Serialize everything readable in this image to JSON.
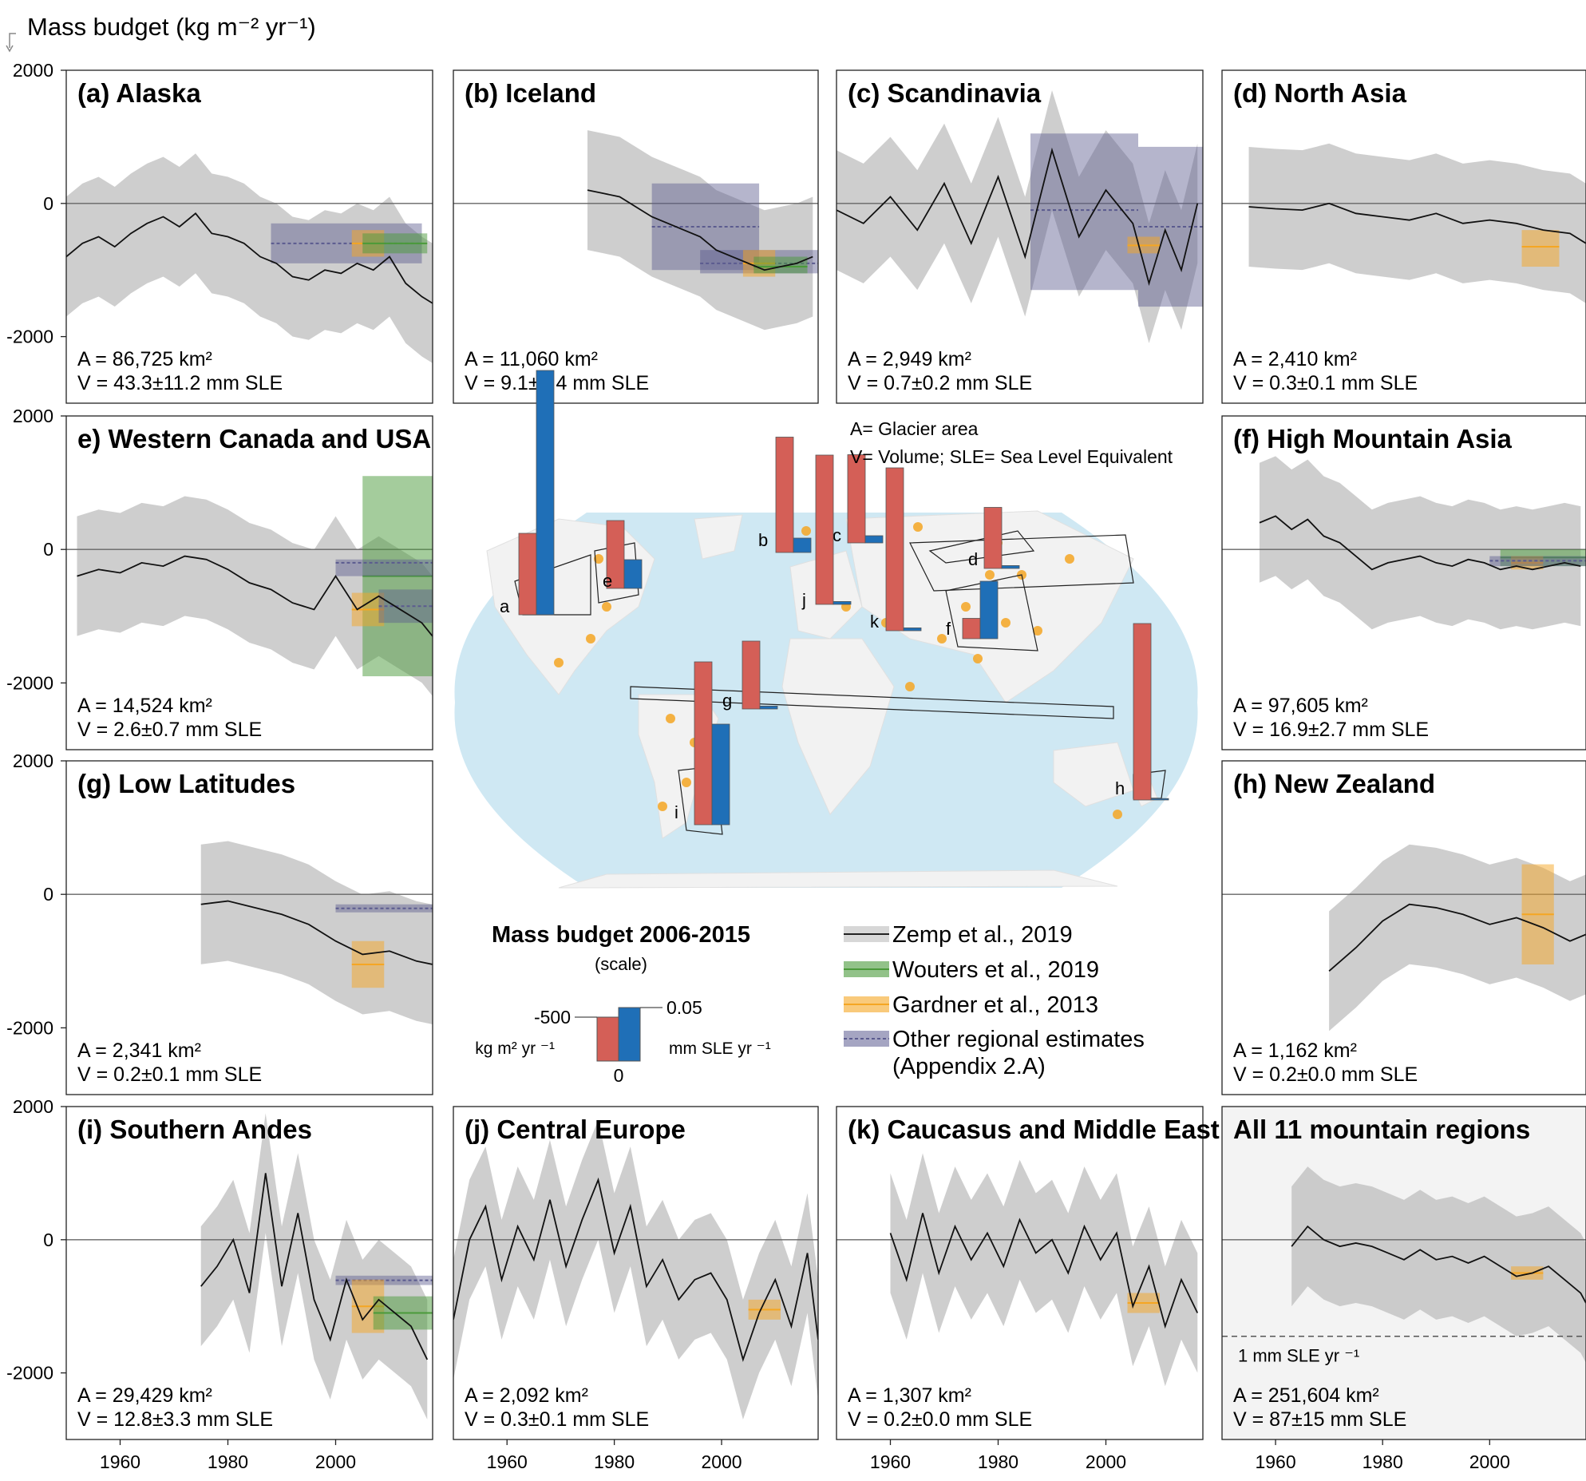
{
  "header": {
    "ylabel": "Mass budget (kg m⁻² yr⁻¹)"
  },
  "colors": {
    "zemp": "#bdbdbd",
    "wouters": "#4a9a3a",
    "gardner": "#f5a623",
    "other": "#5b5b8f",
    "bar_red": "#d45f57",
    "bar_blue": "#1f6fb7",
    "ocean": "#cfe8f3"
  },
  "yticks": [
    "2000",
    "0",
    "-2000"
  ],
  "xticks": [
    "1960",
    "1980",
    "2000"
  ],
  "map": {
    "labels": [
      "a",
      "b",
      "c",
      "d",
      "e",
      "f",
      "g",
      "h",
      "i",
      "j",
      "k"
    ],
    "note_area": "A= Glacier area",
    "note_volume": "V= Volume; SLE= Sea Level Equivalent"
  },
  "scale": {
    "title": "Mass budget 2006-2015",
    "subtitle": "(scale)",
    "left_value": "-500",
    "left_unit": "kg m² yr ⁻¹",
    "right_value": "0.05",
    "right_unit": "mm SLE yr ⁻¹",
    "zero": "0"
  },
  "legend": {
    "zemp": "Zemp et al., 2019",
    "wouters": "Wouters et al., 2019",
    "gardner": "Gardner et al., 2013",
    "other": "Other regional estimates",
    "other2": "(Appendix 2.A)"
  },
  "chart_data": [
    {
      "type": "line",
      "title": "(a) Alaska",
      "area": "A = 86,725 km²",
      "volume": "V = 43.3±11.2 mm SLE",
      "ylim": [
        -3000,
        2000
      ],
      "xlim": [
        1950,
        2018
      ],
      "series": [
        {
          "x": [
            1950,
            1953,
            1956,
            1959,
            1962,
            1965,
            1968,
            1971,
            1974,
            1977,
            1980,
            1983,
            1986,
            1989,
            1992,
            1995,
            1998,
            2001,
            2004,
            2007,
            2010,
            2013,
            2016,
            2018
          ],
          "values": [
            -800,
            -600,
            -500,
            -650,
            -450,
            -300,
            -200,
            -350,
            -150,
            -450,
            -500,
            -600,
            -800,
            -900,
            -1100,
            -1150,
            -1000,
            -1050,
            -900,
            -1000,
            -800,
            -1200,
            -1400,
            -1500
          ]
        }
      ],
      "estimates": [
        {
          "source": "other",
          "x0": 1988,
          "x1": 2016,
          "y0": -900,
          "y1": -300,
          "mid": -600
        },
        {
          "source": "gardner",
          "x0": 2003,
          "x1": 2009,
          "y0": -800,
          "y1": -400,
          "mid": -600
        },
        {
          "source": "wouters",
          "x0": 2005,
          "x1": 2017,
          "y0": -750,
          "y1": -450,
          "mid": -600
        }
      ]
    },
    {
      "type": "line",
      "title": "(b) Iceland",
      "area": "A = 11,060 km²",
      "volume": "V = 9.1±2.4 mm SLE",
      "ylim": [
        -3000,
        2000
      ],
      "xlim": [
        1950,
        2018
      ],
      "series": [
        {
          "x": [
            1975,
            1978,
            1981,
            1984,
            1987,
            1990,
            1993,
            1996,
            1999,
            2002,
            2005,
            2008,
            2011,
            2014,
            2017
          ],
          "values": [
            200,
            150,
            100,
            -50,
            -200,
            -300,
            -400,
            -500,
            -700,
            -800,
            -900,
            -1000,
            -950,
            -900,
            -800
          ]
        }
      ],
      "estimates": [
        {
          "source": "other",
          "x0": 1987,
          "x1": 2007,
          "y0": -1000,
          "y1": 300,
          "mid": -350
        },
        {
          "source": "other",
          "x0": 1996,
          "x1": 2018,
          "y0": -1050,
          "y1": -700,
          "mid": -900
        },
        {
          "source": "gardner",
          "x0": 2004,
          "x1": 2010,
          "y0": -1100,
          "y1": -700,
          "mid": -900
        },
        {
          "source": "wouters",
          "x0": 2006,
          "x1": 2016,
          "y0": -1050,
          "y1": -800,
          "mid": -950
        }
      ]
    },
    {
      "type": "line",
      "title": "(c) Scandinavia",
      "area": "A = 2,949 km²",
      "volume": "V = 0.7±0.2 mm SLE",
      "ylim": [
        -3000,
        2000
      ],
      "xlim": [
        1950,
        2018
      ],
      "series": [
        {
          "x": [
            1950,
            1955,
            1960,
            1965,
            1970,
            1975,
            1980,
            1985,
            1990,
            1995,
            2000,
            2005,
            2008,
            2011,
            2014,
            2017
          ],
          "values": [
            -100,
            -300,
            100,
            -400,
            300,
            -600,
            400,
            -800,
            800,
            -500,
            200,
            -300,
            -1200,
            -400,
            -1000,
            0
          ]
        }
      ],
      "estimates": [
        {
          "source": "other",
          "x0": 1986,
          "x1": 2006,
          "y0": -1300,
          "y1": 1050,
          "mid": -100
        },
        {
          "source": "other",
          "x0": 2006,
          "x1": 2018,
          "y0": -1550,
          "y1": 850,
          "mid": -350
        },
        {
          "source": "gardner",
          "x0": 2004,
          "x1": 2010,
          "y0": -750,
          "y1": -500,
          "mid": -630
        }
      ]
    },
    {
      "type": "line",
      "title": "(d) North Asia",
      "area": "A = 2,410 km²",
      "volume": "V = 0.3±0.1 mm SLE",
      "ylim": [
        -3000,
        2000
      ],
      "xlim": [
        1950,
        2018
      ],
      "series": [
        {
          "x": [
            1955,
            1960,
            1965,
            1970,
            1975,
            1980,
            1985,
            1990,
            1995,
            2000,
            2005,
            2010,
            2015,
            2018
          ],
          "values": [
            -50,
            -80,
            -100,
            0,
            -150,
            -200,
            -250,
            -150,
            -300,
            -250,
            -300,
            -400,
            -450,
            -600
          ]
        }
      ],
      "estimates": [
        {
          "source": "gardner",
          "x0": 2006,
          "x1": 2013,
          "y0": -950,
          "y1": -400,
          "mid": -650
        }
      ]
    },
    {
      "type": "line",
      "title": "e) Western Canada and USA",
      "area": "A = 14,524 km²",
      "volume": "V = 2.6±0.7 mm SLE",
      "ylim": [
        -3000,
        2000
      ],
      "xlim": [
        1950,
        2018
      ],
      "series": [
        {
          "x": [
            1952,
            1956,
            1960,
            1964,
            1968,
            1972,
            1976,
            1980,
            1984,
            1988,
            1992,
            1996,
            2000,
            2004,
            2008,
            2012,
            2016,
            2018
          ],
          "values": [
            -400,
            -300,
            -350,
            -200,
            -250,
            -100,
            -150,
            -300,
            -500,
            -600,
            -800,
            -900,
            -400,
            -900,
            -700,
            -900,
            -1100,
            -1300
          ]
        }
      ],
      "estimates": [
        {
          "source": "wouters",
          "x0": 2005,
          "x1": 2018,
          "y0": -1900,
          "y1": 1100,
          "mid": -400
        },
        {
          "source": "other",
          "x0": 2000,
          "x1": 2018,
          "y0": -400,
          "y1": -150,
          "mid": -200
        },
        {
          "source": "gardner",
          "x0": 2003,
          "x1": 2009,
          "y0": -1150,
          "y1": -650,
          "mid": -900
        },
        {
          "source": "other",
          "x0": 2008,
          "x1": 2018,
          "y0": -1100,
          "y1": -600,
          "mid": -850
        }
      ]
    },
    {
      "type": "line",
      "title": "(f) High Mountain Asia",
      "area": "A = 97,605 km²",
      "volume": "V = 16.9±2.7 mm SLE",
      "ylim": [
        -3000,
        2000
      ],
      "xlim": [
        1950,
        2018
      ],
      "series": [
        {
          "x": [
            1957,
            1960,
            1963,
            1966,
            1969,
            1972,
            1975,
            1978,
            1981,
            1984,
            1987,
            1990,
            1993,
            1996,
            1999,
            2002,
            2005,
            2008,
            2011,
            2014,
            2017
          ],
          "values": [
            400,
            500,
            300,
            450,
            200,
            100,
            -100,
            -300,
            -200,
            -150,
            -100,
            -200,
            -250,
            -150,
            -200,
            -300,
            -250,
            -300,
            -250,
            -200,
            -250
          ]
        }
      ],
      "estimates": [
        {
          "source": "wouters",
          "x0": 2002,
          "x1": 2018,
          "y0": -250,
          "y1": 0,
          "mid": -120
        },
        {
          "source": "gardner",
          "x0": 2004,
          "x1": 2010,
          "y0": -300,
          "y1": -100,
          "mid": -200
        },
        {
          "source": "other",
          "x0": 2000,
          "x1": 2018,
          "y0": -250,
          "y1": -100,
          "mid": -170
        }
      ]
    },
    {
      "type": "line",
      "title": "(g) Low Latitudes",
      "area": "A = 2,341 km²",
      "volume": "V = 0.2±0.1 mm SLE",
      "ylim": [
        -3000,
        2000
      ],
      "xlim": [
        1950,
        2018
      ],
      "series": [
        {
          "x": [
            1975,
            1980,
            1985,
            1990,
            1995,
            2000,
            2005,
            2010,
            2015,
            2018
          ],
          "values": [
            -150,
            -100,
            -200,
            -300,
            -450,
            -700,
            -900,
            -850,
            -1000,
            -1050
          ]
        }
      ],
      "estimates": [
        {
          "source": "other",
          "x0": 2000,
          "x1": 2018,
          "y0": -270,
          "y1": -150,
          "mid": -210
        },
        {
          "source": "gardner",
          "x0": 2003,
          "x1": 2009,
          "y0": -1400,
          "y1": -700,
          "mid": -1050
        }
      ]
    },
    {
      "type": "line",
      "title": "(h) New Zealand",
      "area": "A = 1,162 km²",
      "volume": "V = 0.2±0.0 mm SLE",
      "ylim": [
        -3000,
        2000
      ],
      "xlim": [
        1950,
        2018
      ],
      "series": [
        {
          "x": [
            1970,
            1975,
            1980,
            1985,
            1990,
            1995,
            2000,
            2005,
            2010,
            2015,
            2018
          ],
          "values": [
            -1150,
            -800,
            -400,
            -150,
            -200,
            -300,
            -450,
            -350,
            -500,
            -700,
            -600
          ]
        }
      ],
      "estimates": [
        {
          "source": "gardner",
          "x0": 2006,
          "x1": 2012,
          "y0": -1050,
          "y1": 450,
          "mid": -300
        }
      ]
    },
    {
      "type": "line",
      "title": "(i) Southern Andes",
      "area": "A = 29,429 km²",
      "volume": "V = 12.8±3.3 mm SLE",
      "ylim": [
        -3000,
        2000
      ],
      "xlim": [
        1950,
        2018
      ],
      "series": [
        {
          "x": [
            1975,
            1978,
            1981,
            1984,
            1987,
            1990,
            1993,
            1996,
            1999,
            2002,
            2005,
            2008,
            2011,
            2014,
            2017
          ],
          "values": [
            -700,
            -400,
            0,
            -800,
            1000,
            -700,
            400,
            -900,
            -1500,
            -600,
            -1200,
            -900,
            -1100,
            -1300,
            -1800
          ]
        }
      ],
      "estimates": [
        {
          "source": "other",
          "x0": 2000,
          "x1": 2018,
          "y0": -680,
          "y1": -540,
          "mid": -610
        },
        {
          "source": "gardner",
          "x0": 2003,
          "x1": 2009,
          "y0": -1400,
          "y1": -600,
          "mid": -1000
        },
        {
          "source": "wouters",
          "x0": 2007,
          "x1": 2018,
          "y0": -1350,
          "y1": -850,
          "mid": -1100
        }
      ]
    },
    {
      "type": "line",
      "title": "(j) Central Europe",
      "area": "A = 2,092 km²",
      "volume": "V = 0.3±0.1 mm SLE",
      "ylim": [
        -3000,
        2000
      ],
      "xlim": [
        1950,
        2018
      ],
      "series": [
        {
          "x": [
            1950,
            1953,
            1956,
            1959,
            1962,
            1965,
            1968,
            1971,
            1974,
            1977,
            1980,
            1983,
            1986,
            1989,
            1992,
            1995,
            1998,
            2001,
            2004,
            2007,
            2010,
            2013,
            2016,
            2018
          ],
          "values": [
            -1200,
            0,
            500,
            -600,
            200,
            -300,
            600,
            -400,
            300,
            900,
            -200,
            500,
            -700,
            -300,
            -900,
            -600,
            -500,
            -900,
            -1800,
            -1100,
            -600,
            -1300,
            -200,
            -1500
          ]
        }
      ],
      "estimates": [
        {
          "source": "gardner",
          "x0": 2005,
          "x1": 2011,
          "y0": -1200,
          "y1": -900,
          "mid": -1050
        }
      ]
    },
    {
      "type": "line",
      "title": "(k) Caucasus and Middle East",
      "area": "A = 1,307 km²",
      "volume": "V = 0.2±0.0 mm SLE",
      "ylim": [
        -3000,
        2000
      ],
      "xlim": [
        1950,
        2018
      ],
      "series": [
        {
          "x": [
            1960,
            1963,
            1966,
            1969,
            1972,
            1975,
            1978,
            1981,
            1984,
            1987,
            1990,
            1993,
            1996,
            1999,
            2002,
            2005,
            2008,
            2011,
            2014,
            2017
          ],
          "values": [
            100,
            -600,
            400,
            -500,
            200,
            -300,
            100,
            -400,
            300,
            -200,
            0,
            -500,
            200,
            -300,
            100,
            -1000,
            -400,
            -1300,
            -600,
            -1100
          ]
        }
      ],
      "estimates": [
        {
          "source": "gardner",
          "x0": 2004,
          "x1": 2010,
          "y0": -1100,
          "y1": -800,
          "mid": -950
        }
      ]
    },
    {
      "type": "line",
      "title": "All 11 mountain regions",
      "area": "A = 251,604 km²",
      "volume": "V = 87±15 mm SLE",
      "ylim": [
        -3000,
        2000
      ],
      "xlim": [
        1950,
        2018
      ],
      "annotation": "1 mm SLE yr ⁻¹",
      "reference_line": -1450,
      "series": [
        {
          "x": [
            1963,
            1966,
            1969,
            1972,
            1975,
            1978,
            1981,
            1984,
            1987,
            1990,
            1993,
            1996,
            1999,
            2002,
            2005,
            2008,
            2011,
            2014,
            2017,
            2018
          ],
          "values": [
            -100,
            200,
            0,
            -100,
            -50,
            -100,
            -200,
            -300,
            -150,
            -300,
            -250,
            -350,
            -250,
            -400,
            -550,
            -500,
            -400,
            -600,
            -800,
            -950
          ]
        }
      ],
      "estimates": [
        {
          "source": "gardner",
          "x0": 2004,
          "x1": 2010,
          "y0": -600,
          "y1": -400,
          "mid": -500
        }
      ]
    },
    {
      "type": "bar",
      "title": "Mass budget 2006-2015",
      "series": [
        {
          "name": "kg m² yr ⁻¹",
          "region": [
            "a",
            "b",
            "c",
            "d",
            "e",
            "f",
            "g",
            "h",
            "i",
            "j",
            "k"
          ],
          "values": [
            -600,
            -850,
            -650,
            -450,
            -500,
            -150,
            -500,
            -1300,
            -1200,
            -1100,
            -1200
          ]
        },
        {
          "name": "mm SLE yr ⁻¹",
          "region": [
            "a",
            "b",
            "c",
            "d",
            "e",
            "f",
            "g",
            "h",
            "i",
            "j",
            "k"
          ],
          "values": [
            0.17,
            0.01,
            0.005,
            0.002,
            0.02,
            0.04,
            0.002,
            0.001,
            0.07,
            0.002,
            0.002
          ]
        }
      ]
    }
  ]
}
